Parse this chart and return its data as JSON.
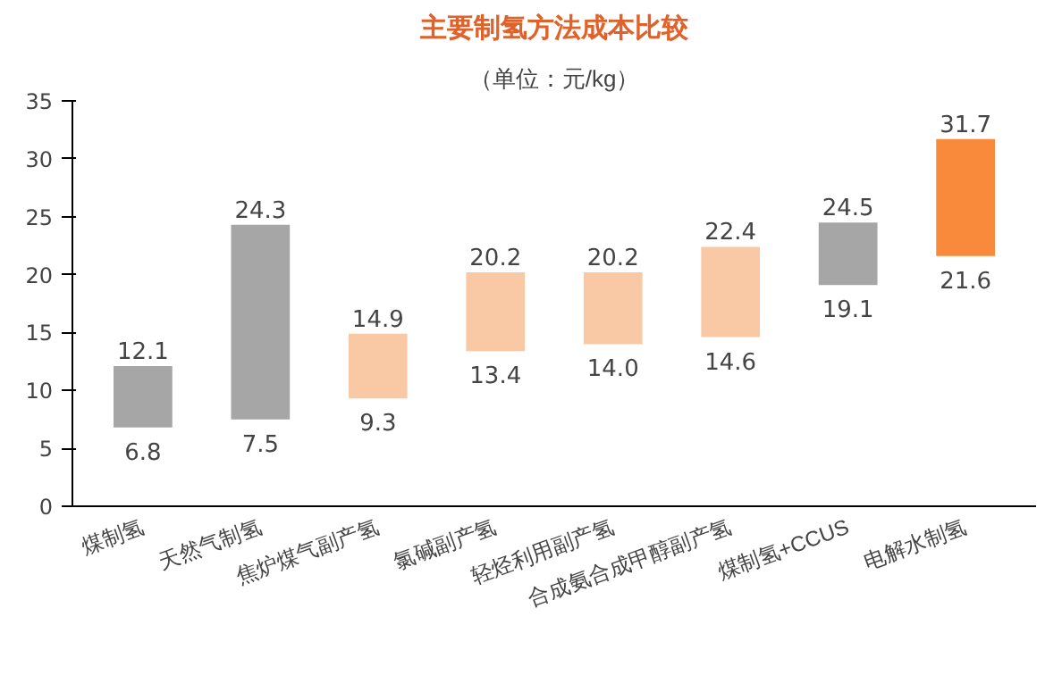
{
  "chart_data": {
    "type": "bar",
    "title": "主要制氢方法成本比较",
    "subtitle": "（单位：元/kg）",
    "categories": [
      "煤制氢",
      "天然气制氢",
      "焦炉煤气副产氢",
      "氯碱副产氢",
      "轻烃利用副产氢",
      "合成氨合成甲醇副产氢",
      "煤制氢+CCUS",
      "电解水制氢"
    ],
    "base": [
      6.8,
      7.5,
      9.3,
      13.4,
      14.0,
      14.6,
      19.1,
      21.6
    ],
    "values": [
      5.3,
      16.8,
      5.6,
      6.8,
      6.2,
      7.8,
      5.4,
      10.1
    ],
    "colors": [
      "#a6a6a6",
      "#a6a6a6",
      "#f9c9a5",
      "#f9c9a5",
      "#f9c9a5",
      "#f9c9a5",
      "#a6a6a6",
      "#f98a3c"
    ],
    "value_labels": [
      "12.1",
      "24.3",
      "14.9",
      "20.2",
      "20.2",
      "22.4",
      "24.5",
      "31.7"
    ],
    "annotations": [
      {
        "text": "6.8",
        "x": "煤制氢",
        "y": 6.8
      },
      {
        "text": "7.5",
        "x": "天然气制氢",
        "y": 7.5
      },
      {
        "text": "9.3",
        "x": "焦炉煤气副产氢",
        "y": 9.3
      },
      {
        "text": "13.4",
        "x": "氯碱副产氢",
        "y": 13.4
      },
      {
        "text": "14.0",
        "x": "轻烃利用副产氢",
        "y": 14.0
      },
      {
        "text": "14.6",
        "x": "合成氨合成甲醇副产氢",
        "y": 14.6
      },
      {
        "text": "19.1",
        "x": "煤制氢+CCUS",
        "y": 19.1
      },
      {
        "text": "21.6",
        "x": "电解水制氢",
        "y": 21.6
      }
    ],
    "ylim": [
      0,
      35
    ],
    "yticks": [
      0,
      5,
      10,
      15,
      20,
      25,
      30,
      35
    ],
    "grid": false
  }
}
